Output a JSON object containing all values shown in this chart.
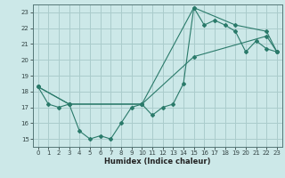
{
  "title": "",
  "xlabel": "Humidex (Indice chaleur)",
  "ylabel": "",
  "bg_color": "#cce8e8",
  "grid_color": "#aacccc",
  "line_color": "#2a7a6a",
  "xlim": [
    -0.5,
    23.5
  ],
  "ylim": [
    14.5,
    23.5
  ],
  "yticks": [
    15,
    16,
    17,
    18,
    19,
    20,
    21,
    22,
    23
  ],
  "xticks": [
    0,
    1,
    2,
    3,
    4,
    5,
    6,
    7,
    8,
    9,
    10,
    11,
    12,
    13,
    14,
    15,
    16,
    17,
    18,
    19,
    20,
    21,
    22,
    23
  ],
  "series": [
    {
      "x": [
        0,
        1,
        2,
        3,
        4,
        5,
        6,
        7,
        8,
        9,
        10,
        11,
        12,
        13,
        14,
        15,
        16,
        17,
        18,
        19,
        20,
        21,
        22,
        23
      ],
      "y": [
        18.3,
        17.2,
        17.0,
        17.2,
        15.5,
        15.0,
        15.2,
        15.0,
        16.0,
        17.0,
        17.2,
        16.5,
        17.0,
        17.2,
        18.5,
        23.3,
        22.2,
        22.5,
        22.2,
        21.8,
        20.5,
        21.2,
        20.7,
        20.5
      ]
    },
    {
      "x": [
        0,
        3,
        10,
        15,
        22,
        23
      ],
      "y": [
        18.3,
        17.2,
        17.2,
        20.2,
        21.5,
        20.5
      ]
    },
    {
      "x": [
        0,
        3,
        10,
        15,
        19,
        22,
        23
      ],
      "y": [
        18.3,
        17.2,
        17.2,
        23.3,
        22.2,
        21.8,
        20.5
      ]
    }
  ]
}
